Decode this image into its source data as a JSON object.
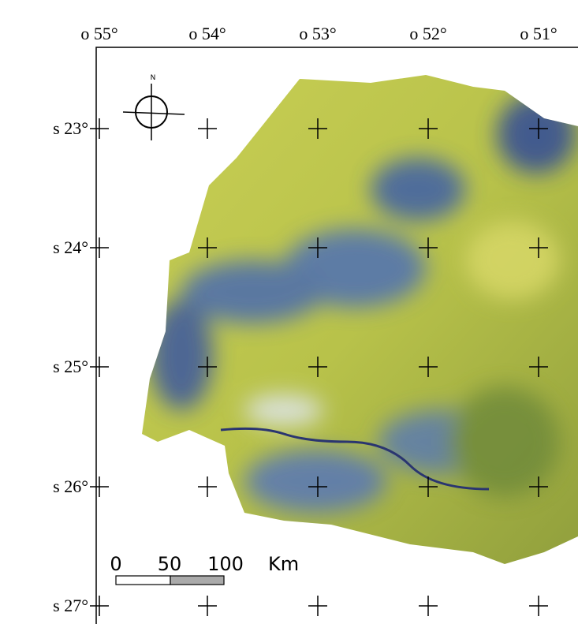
{
  "map": {
    "longitude_labels": [
      "o 55°",
      "o 54°",
      "o 53°",
      "o 52°",
      "o 51°"
    ],
    "latitude_labels": [
      "s 23°",
      "s 24°",
      "s 25°",
      "s 26°",
      "s 27°"
    ],
    "north_label": "N",
    "scale_bar": {
      "labels": [
        "0",
        "50",
        "100"
      ],
      "unit": "Km"
    }
  }
}
